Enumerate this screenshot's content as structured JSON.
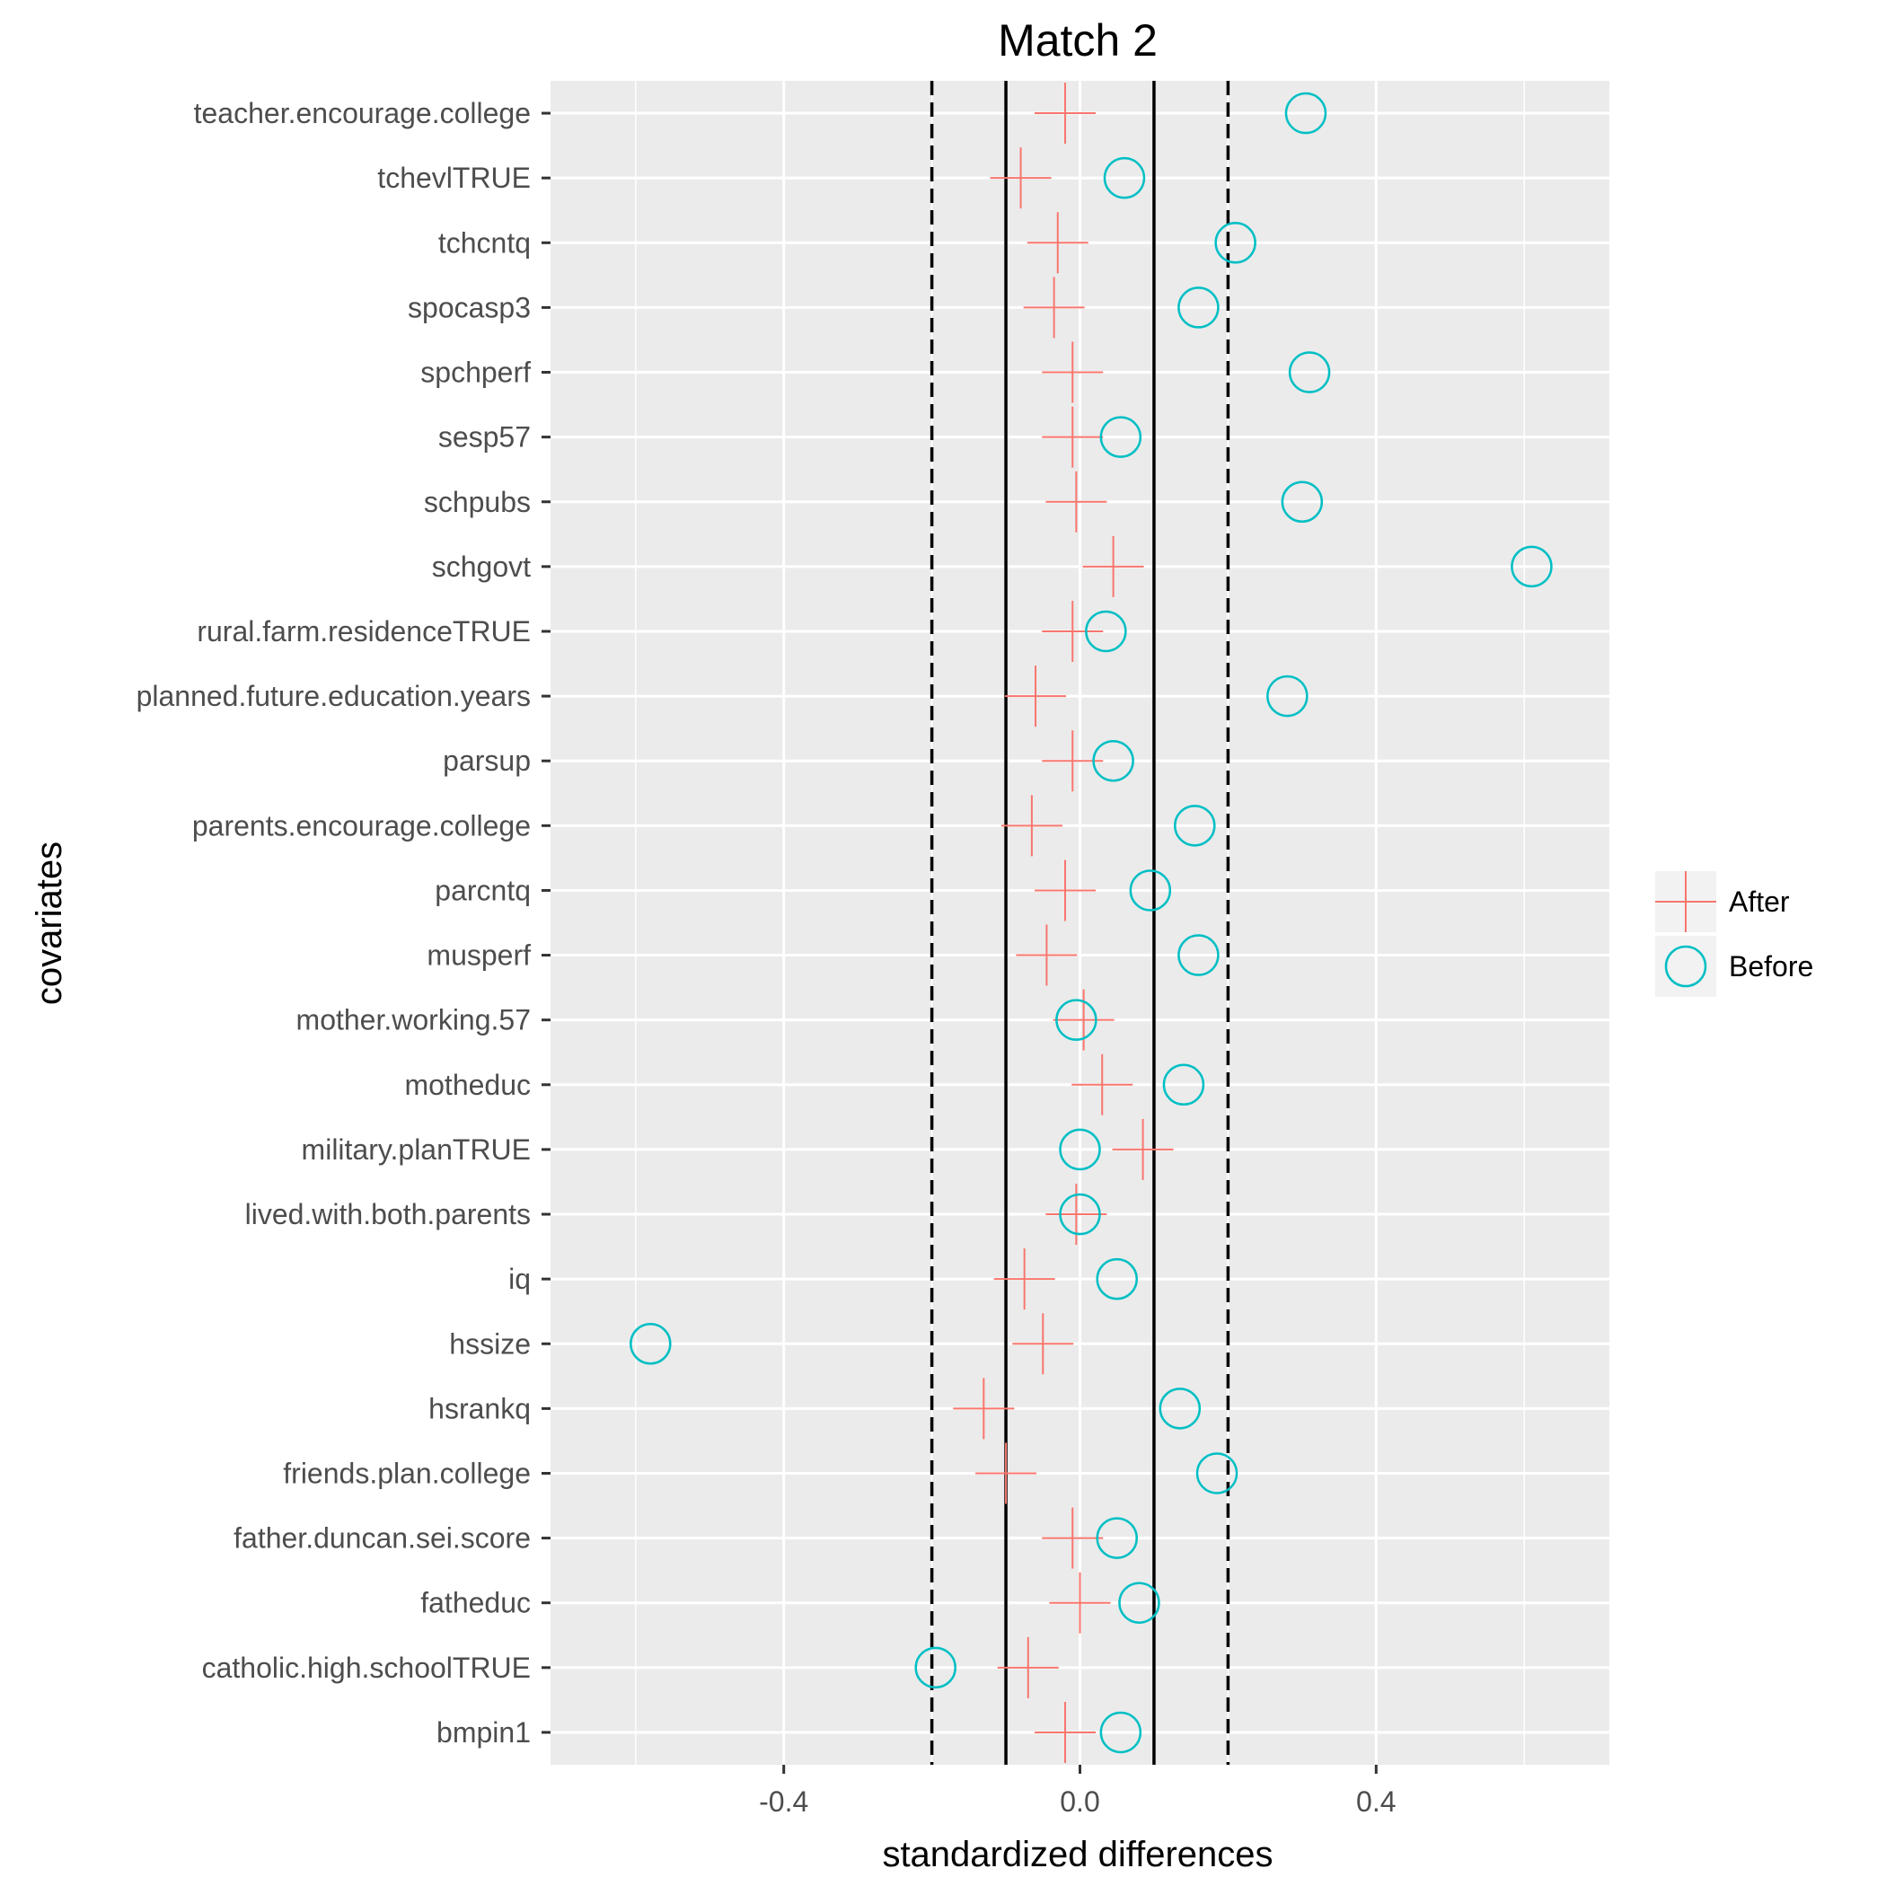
{
  "chart_data": {
    "type": "scatter",
    "title": "Match 2",
    "xlabel": "standardized differences",
    "ylabel": "covariates",
    "xlim": [
      -0.715,
      0.715
    ],
    "x_ticks": [
      -0.4,
      0.0,
      0.4
    ],
    "x_tick_labels": [
      "-0.4",
      "0.0",
      "0.4"
    ],
    "reference_lines": [
      {
        "x": -0.2,
        "style": "dashed"
      },
      {
        "x": -0.1,
        "style": "solid"
      },
      {
        "x": 0.1,
        "style": "solid"
      },
      {
        "x": 0.2,
        "style": "dashed"
      }
    ],
    "grid": true,
    "legend_position": "right",
    "categories": [
      "teacher.encourage.college",
      "tchevlTRUE",
      "tchcntq",
      "spocasp3",
      "spchperf",
      "sesp57",
      "schpubs",
      "schgovt",
      "rural.farm.residenceTRUE",
      "planned.future.education.years",
      "parsup",
      "parents.encourage.college",
      "parcntq",
      "musperf",
      "mother.working.57",
      "motheduc",
      "military.planTRUE",
      "lived.with.both.parents",
      "iq",
      "hssize",
      "hsrankq",
      "friends.plan.college",
      "father.duncan.sei.score",
      "fatheduc",
      "catholic.high.schoolTRUE",
      "bmpin1"
    ],
    "series": [
      {
        "name": "After",
        "marker": "plus",
        "color": "#F8766D",
        "values": [
          -0.02,
          -0.08,
          -0.03,
          -0.035,
          -0.01,
          -0.01,
          -0.005,
          0.045,
          -0.01,
          -0.06,
          -0.01,
          -0.065,
          -0.02,
          -0.045,
          0.005,
          0.03,
          0.085,
          -0.005,
          -0.075,
          -0.05,
          -0.13,
          -0.1,
          -0.01,
          0.0,
          -0.07,
          -0.02
        ]
      },
      {
        "name": "Before",
        "marker": "circle",
        "color": "#00BFC4",
        "values": [
          0.305,
          0.06,
          0.21,
          0.16,
          0.31,
          0.055,
          0.3,
          0.61,
          0.035,
          0.28,
          0.045,
          0.155,
          0.095,
          0.16,
          -0.005,
          0.14,
          0.0,
          0.0,
          0.05,
          -0.58,
          0.135,
          0.185,
          0.05,
          0.08,
          -0.195,
          0.055
        ]
      }
    ]
  }
}
